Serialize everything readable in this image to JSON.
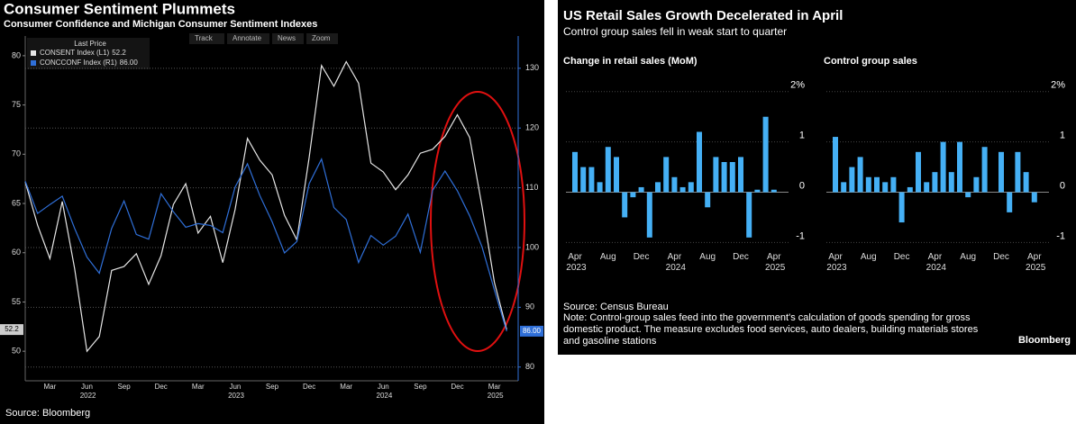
{
  "chart_data": [
    {
      "type": "line",
      "title": "Consumer Sentiment Plummets",
      "subtitle": "Consumer Confidence and Michigan Consumer Sentiment Indexes",
      "legend_title": "Last Price",
      "toolbar": [
        "Track",
        "Annotate",
        "News",
        "Zoom"
      ],
      "source": "Source: Bloomberg",
      "categories": [
        null,
        null,
        "Mar",
        null,
        null,
        "Jun 2022",
        null,
        null,
        "Sep",
        null,
        null,
        "Dec",
        null,
        null,
        "Mar",
        null,
        null,
        "Jun 2023",
        null,
        null,
        "Sep",
        null,
        null,
        "Dec",
        null,
        null,
        "Mar",
        null,
        null,
        "Jun 2024",
        null,
        null,
        "Sep",
        null,
        null,
        "Dec",
        null,
        null,
        "Mar 2025",
        null
      ],
      "series": [
        {
          "name": "CONSENT Index (L1)",
          "color": "#e6e6e6",
          "axis": "y",
          "last_label": "52.2",
          "values": [
            67.2,
            62.8,
            59.4,
            65.2,
            58.4,
            50.0,
            51.5,
            58.2,
            58.6,
            59.9,
            56.8,
            59.7,
            64.9,
            67.0,
            62.0,
            63.7,
            59.0,
            64.4,
            71.6,
            69.4,
            67.9,
            63.8,
            61.3,
            69.7,
            79.0,
            76.9,
            79.4,
            77.2,
            69.1,
            68.2,
            66.4,
            67.9,
            70.1,
            70.5,
            71.8,
            74.0,
            71.7,
            64.7,
            57.0,
            52.2
          ]
        },
        {
          "name": "CONCCONF Index (R1)",
          "color": "#2f6fd8",
          "axis": "y2",
          "last_label": "86.00",
          "values": [
            111.1,
            105.7,
            107.2,
            108.6,
            103.2,
            98.4,
            95.7,
            103.2,
            107.8,
            102.2,
            101.4,
            109.0,
            106.0,
            103.4,
            104.0,
            103.7,
            102.5,
            110.1,
            114.0,
            108.7,
            104.3,
            99.1,
            101.0,
            110.7,
            114.8,
            106.7,
            104.7,
            97.5,
            102.0,
            100.4,
            101.9,
            105.6,
            99.2,
            109.6,
            112.8,
            109.5,
            105.3,
            100.1,
            92.9,
            86.0
          ]
        }
      ],
      "ylim": [
        47,
        82
      ],
      "yticks": [
        50,
        55,
        60,
        65,
        70,
        75,
        80
      ],
      "y2lim": [
        77.7,
        135.4
      ],
      "y2ticks": [
        80,
        90,
        100,
        110,
        120,
        130
      ],
      "grid": "y2"
    },
    {
      "type": "bar",
      "title": "Change in retail sales (MoM)",
      "categories": [
        "Apr 2023",
        null,
        null,
        null,
        "Aug",
        null,
        null,
        null,
        "Dec",
        null,
        null,
        null,
        "Apr 2024",
        null,
        null,
        null,
        "Aug",
        null,
        null,
        null,
        "Dec",
        null,
        null,
        null,
        "Apr 2025"
      ],
      "values": [
        0.8,
        0.5,
        0.5,
        0.2,
        0.9,
        0.7,
        -0.5,
        -0.1,
        0.1,
        -0.9,
        0.2,
        0.7,
        0.3,
        0.1,
        0.2,
        1.2,
        -0.3,
        0.7,
        0.6,
        0.6,
        0.7,
        -0.9,
        0.05,
        1.5,
        0.05
      ],
      "color": "#45b0f5",
      "ylim": [
        -1.1,
        2.3
      ],
      "yticks": [
        -1,
        0,
        1,
        {
          "value": 2,
          "label": "2%"
        }
      ],
      "grid": true
    },
    {
      "type": "bar",
      "title": "Control group sales",
      "categories": [
        "Apr 2023",
        null,
        null,
        null,
        "Aug",
        null,
        null,
        null,
        "Dec",
        null,
        null,
        null,
        "Apr 2024",
        null,
        null,
        null,
        "Aug",
        null,
        null,
        null,
        "Dec",
        null,
        null,
        null,
        "Apr 2025"
      ],
      "values": [
        1.1,
        0.2,
        0.5,
        0.7,
        0.3,
        0.3,
        0.2,
        0.3,
        -0.6,
        0.1,
        0.8,
        0.2,
        0.4,
        1.0,
        0.4,
        1.0,
        -0.1,
        0.3,
        0.9,
        0.0,
        0.8,
        -0.4,
        0.8,
        0.4,
        -0.2
      ],
      "color": "#45b0f5",
      "ylim": [
        -1.1,
        2.3
      ],
      "yticks": [
        -1,
        0,
        1,
        {
          "value": 2,
          "label": "2%"
        }
      ],
      "grid": true
    }
  ],
  "retail_panel": {
    "title": "US Retail Sales Growth Decelerated in April",
    "subtitle": "Control group sales fell in weak start to quarter",
    "source": "Source: Census Bureau",
    "note": "Note: Control-group sales feed into the government's calculation of goods spending for gross domestic product. The measure excludes food services, auto dealers, building materials stores and gasoline stations",
    "logo": "Bloomberg"
  }
}
